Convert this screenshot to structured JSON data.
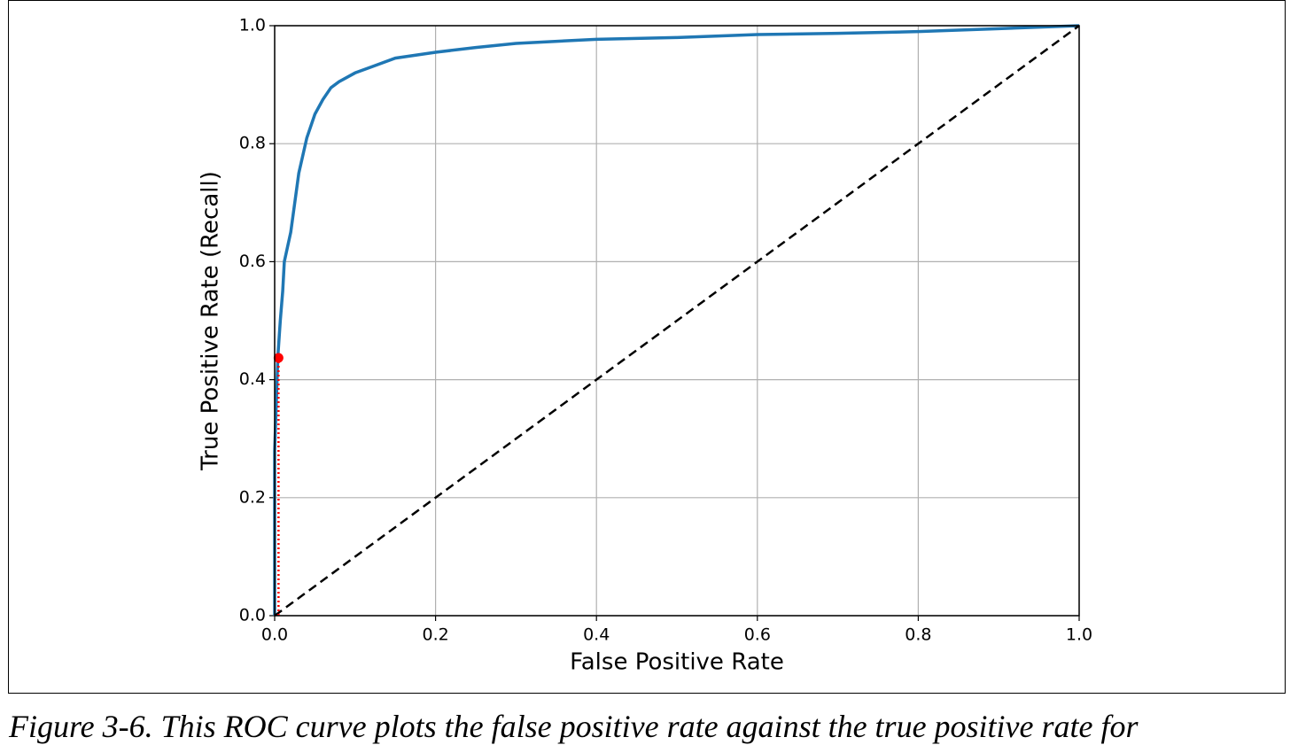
{
  "chart_data": {
    "type": "line",
    "xlabel": "False Positive Rate",
    "ylabel": "True Positive Rate (Recall)",
    "xlim": [
      0,
      1
    ],
    "ylim": [
      0,
      1
    ],
    "xticks": [
      {
        "value": 0,
        "label": "0.0"
      },
      0.2,
      0.4,
      0.6,
      0.8,
      {
        "value": 1,
        "label": "1.0"
      }
    ],
    "yticks": [
      {
        "value": 0,
        "label": "0.0"
      },
      0.2,
      0.4,
      0.6,
      0.8,
      {
        "value": 1,
        "label": "1.0"
      }
    ],
    "grid": true,
    "series": [
      {
        "color": "#1f77b4",
        "linestyle": "solid",
        "x": [
          0,
          0,
          0.004,
          0.007,
          0.01,
          0.012,
          0.02,
          0.025,
          0.03,
          0.035,
          0.04,
          0.05,
          0.06,
          0.07,
          0.08,
          0.1,
          0.12,
          0.15,
          0.2,
          0.25,
          0.3,
          0.4,
          0.5,
          0.6,
          0.7,
          0.8,
          0.9,
          1.0
        ],
        "values": [
          0,
          0.28,
          0.44,
          0.5,
          0.55,
          0.6,
          0.65,
          0.7,
          0.75,
          0.78,
          0.81,
          0.85,
          0.875,
          0.895,
          0.905,
          0.92,
          0.93,
          0.945,
          0.955,
          0.963,
          0.97,
          0.977,
          0.98,
          0.985,
          0.987,
          0.99,
          0.995,
          1.0
        ]
      },
      {
        "color": "#000000",
        "linestyle": "dashed",
        "x": [
          0,
          1
        ],
        "values": [
          0,
          1
        ]
      },
      {
        "color": "#ff0000",
        "linestyle": "dotted",
        "x": [
          0.0048,
          0.0048
        ],
        "values": [
          0,
          0.437
        ]
      }
    ],
    "points": [
      {
        "x": 0.0048,
        "y": 0.437,
        "color": "#ff0000"
      }
    ]
  },
  "caption": "Figure 3-6. This ROC curve plots the false positive rate against the true positive rate for"
}
